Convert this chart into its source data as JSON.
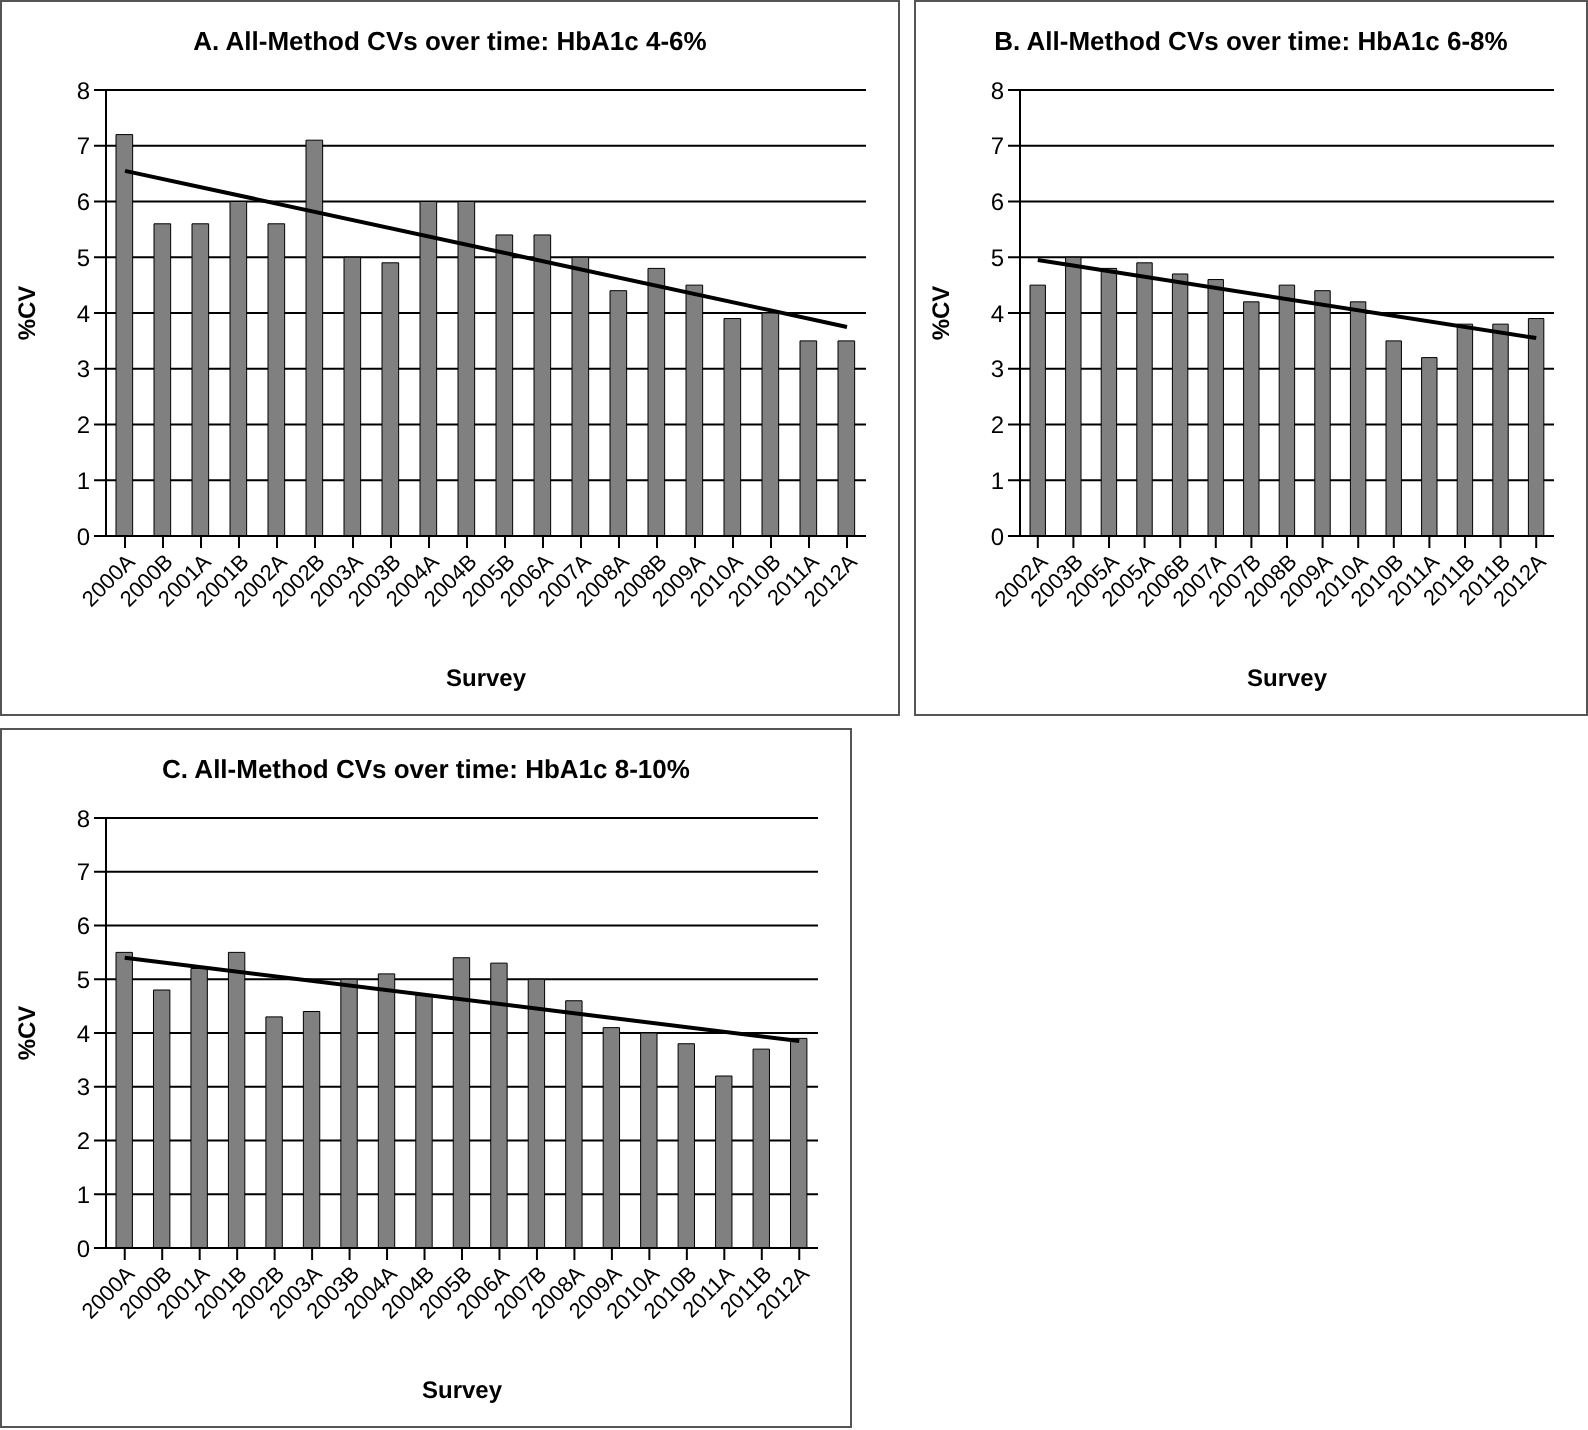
{
  "chart_data": [
    {
      "type": "bar",
      "title": "A. All-Method CVs over time: HbA1c 4-6%",
      "xlabel": "Survey",
      "ylabel": "%CV",
      "categories": [
        "2000A",
        "2000B",
        "2001A",
        "2001B",
        "2002A",
        "2002B",
        "2003A",
        "2003B",
        "2004A",
        "2004B",
        "2005B",
        "2006A",
        "2007A",
        "2008A",
        "2008B",
        "2009A",
        "2010A",
        "2010B",
        "2011A",
        "2012A"
      ],
      "series": [
        {
          "color": "#808080",
          "values": [
            7.2,
            5.6,
            5.6,
            6.0,
            5.6,
            7.1,
            5.0,
            4.9,
            6.0,
            6.0,
            5.4,
            5.4,
            5.0,
            4.4,
            4.8,
            4.5,
            3.9,
            4.0,
            3.5,
            3.5
          ]
        },
        {
          "type": "line",
          "color": "#000000",
          "x": [
            "2000A",
            "2012A"
          ],
          "values": [
            6.55,
            3.75
          ]
        }
      ],
      "ylim": [
        0,
        8
      ],
      "yticks": [
        0,
        1,
        2,
        3,
        4,
        5,
        6,
        7,
        8
      ],
      "grid": "y",
      "legend": false
    },
    {
      "type": "bar",
      "title": "B. All-Method CVs over time: HbA1c 6-8%",
      "xlabel": "Survey",
      "ylabel": "%CV",
      "categories": [
        "2002A",
        "2003B",
        "2005A",
        "2005A",
        "2006B",
        "2007A",
        "2007B",
        "2008B",
        "2009A",
        "2010A",
        "2010B",
        "2011A",
        "2011B",
        "2011B",
        "2012A"
      ],
      "series": [
        {
          "color": "#808080",
          "values": [
            4.5,
            5.0,
            4.8,
            4.9,
            4.7,
            4.6,
            4.2,
            4.5,
            4.4,
            4.2,
            3.5,
            3.2,
            3.8,
            3.8,
            3.9
          ]
        },
        {
          "type": "line",
          "color": "#000000",
          "x": [
            "2002A",
            "2012A"
          ],
          "values": [
            4.95,
            3.55
          ]
        }
      ],
      "ylim": [
        0,
        8
      ],
      "yticks": [
        0,
        1,
        2,
        3,
        4,
        5,
        6,
        7,
        8
      ],
      "grid": "y",
      "legend": false
    },
    {
      "type": "bar",
      "title": "C. All-Method CVs over time: HbA1c 8-10%",
      "xlabel": "Survey",
      "ylabel": "%CV",
      "categories": [
        "2000A",
        "2000B",
        "2001A",
        "2001B",
        "2002B",
        "2003A",
        "2003B",
        "2004A",
        "2004B",
        "2005B",
        "2006A",
        "2007B",
        "2008A",
        "2009A",
        "2010A",
        "2010B",
        "2011A",
        "2011B",
        "2012A"
      ],
      "series": [
        {
          "color": "#808080",
          "values": [
            5.5,
            4.8,
            5.2,
            5.5,
            4.3,
            4.4,
            5.0,
            5.1,
            4.7,
            5.4,
            5.3,
            5.0,
            4.6,
            4.1,
            4.0,
            3.8,
            3.2,
            3.7,
            3.9
          ]
        },
        {
          "type": "line",
          "color": "#000000",
          "x": [
            "2000A",
            "2012A"
          ],
          "values": [
            5.4,
            3.85
          ]
        }
      ],
      "ylim": [
        0,
        8
      ],
      "yticks": [
        0,
        1,
        2,
        3,
        4,
        5,
        6,
        7,
        8
      ],
      "grid": "y",
      "legend": false
    }
  ]
}
